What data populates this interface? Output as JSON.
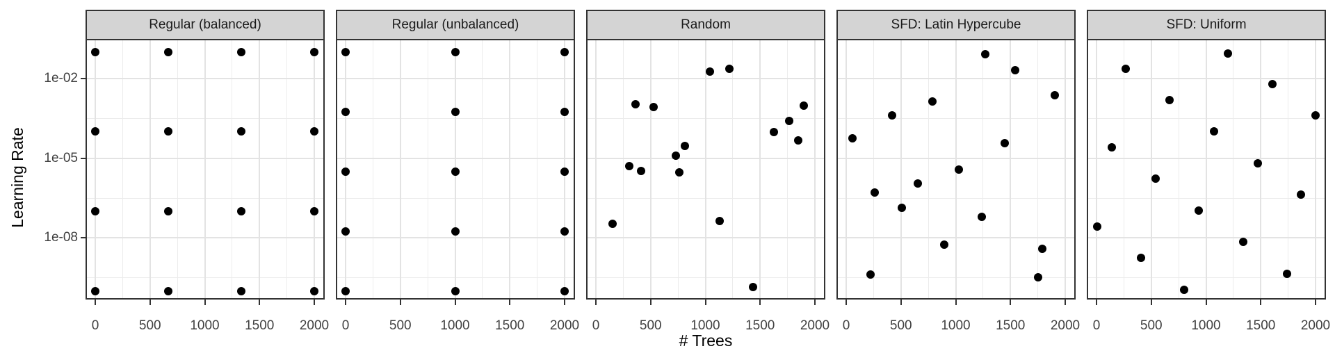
{
  "chart_data": {
    "type": "scatter",
    "title": "",
    "xlabel": "# Trees",
    "ylabel": "Learning Rate",
    "grid": "major+minor",
    "legend": "none",
    "x_axis": {
      "range_data": [
        0,
        2000
      ],
      "ticks": [
        0,
        500,
        1000,
        1500,
        2000
      ],
      "tick_labels": [
        "0",
        "500",
        "1000",
        "1500",
        "2000"
      ],
      "minor_ticks": [
        250,
        750,
        1250,
        1750
      ]
    },
    "y_axis": {
      "scale": "log10",
      "range_data": [
        1e-10,
        0.1
      ],
      "ticks_log10": [
        -2,
        -5,
        -8
      ],
      "tick_labels": [
        "1e-02",
        "1e-05",
        "1e-08"
      ],
      "minor_ticks_log10": [
        -3.5,
        -6.5,
        -9.5
      ]
    },
    "facets": [
      {
        "label": "Regular (balanced)",
        "points": [
          [
            0,
            0.1
          ],
          [
            667,
            0.1
          ],
          [
            1333,
            0.1
          ],
          [
            2000,
            0.1
          ],
          [
            0,
            0.0001
          ],
          [
            667,
            0.0001
          ],
          [
            1333,
            0.0001
          ],
          [
            2000,
            0.0001
          ],
          [
            0,
            1e-07
          ],
          [
            667,
            1e-07
          ],
          [
            1333,
            1e-07
          ],
          [
            2000,
            1e-07
          ],
          [
            0,
            1e-10
          ],
          [
            667,
            1e-10
          ],
          [
            1333,
            1e-10
          ],
          [
            2000,
            1e-10
          ]
        ]
      },
      {
        "label": "Regular (unbalanced)",
        "points": [
          [
            0,
            0.1
          ],
          [
            1000,
            0.1
          ],
          [
            2000,
            0.1
          ],
          [
            0,
            0.00056
          ],
          [
            1000,
            0.00056
          ],
          [
            2000,
            0.00056
          ],
          [
            0,
            3.2e-06
          ],
          [
            1000,
            3.2e-06
          ],
          [
            2000,
            3.2e-06
          ],
          [
            0,
            1.8e-08
          ],
          [
            1000,
            1.8e-08
          ],
          [
            2000,
            1.8e-08
          ],
          [
            0,
            1e-10
          ],
          [
            1000,
            1e-10
          ],
          [
            2000,
            1e-10
          ]
        ]
      },
      {
        "label": "Random",
        "points": [
          [
            1040,
            0.018
          ],
          [
            1220,
            0.023
          ],
          [
            364,
            0.0011
          ],
          [
            524,
            0.00086
          ],
          [
            1898,
            0.00095
          ],
          [
            1764,
            0.00026
          ],
          [
            1623,
            9.8e-05
          ],
          [
            1847,
            4.7e-05
          ],
          [
            811,
            2.9e-05
          ],
          [
            728,
            1.25e-05
          ],
          [
            307,
            5.2e-06
          ],
          [
            415,
            3.3e-06
          ],
          [
            760,
            3e-06
          ],
          [
            153,
            3.5e-08
          ],
          [
            1131,
            4.4e-08
          ],
          [
            1438,
            1.4e-10
          ]
        ]
      },
      {
        "label": "SFD: Latin Hypercube",
        "points": [
          [
            1272,
            0.082
          ],
          [
            1540,
            0.021
          ],
          [
            1904,
            0.0024
          ],
          [
            786,
            0.0014
          ],
          [
            422,
            0.00041
          ],
          [
            58,
            5.7e-05
          ],
          [
            1450,
            3.7e-05
          ],
          [
            1029,
            3.8e-06
          ],
          [
            652,
            1.1e-06
          ],
          [
            262,
            5.2e-07
          ],
          [
            511,
            1.4e-07
          ],
          [
            1240,
            6.3e-08
          ],
          [
            895,
            5.7e-09
          ],
          [
            1789,
            3.9e-09
          ],
          [
            224,
            4.2e-10
          ],
          [
            1751,
            3.3e-10
          ]
        ]
      },
      {
        "label": "SFD: Uniform",
        "points": [
          [
            1197,
            0.087
          ],
          [
            268,
            0.023
          ],
          [
            1605,
            0.0062
          ],
          [
            669,
            0.00155
          ],
          [
            2000,
            0.00041
          ],
          [
            1070,
            0.0001
          ],
          [
            140,
            2.6e-05
          ],
          [
            1471,
            6.5e-06
          ],
          [
            541,
            1.7e-06
          ],
          [
            1866,
            4.3e-07
          ],
          [
            936,
            1.1e-07
          ],
          [
            6,
            2.7e-08
          ],
          [
            1338,
            7.2e-09
          ],
          [
            408,
            1.8e-09
          ],
          [
            1739,
            4.5e-10
          ],
          [
            802,
            1.1e-10
          ]
        ]
      }
    ]
  },
  "style": {
    "strip_bg": "#d4d4d4",
    "panel_border": "#333333",
    "grid_major": "#e3e3e3",
    "grid_minor": "#ececec",
    "point_color": "#000000",
    "tick_color": "#333333",
    "tick_label_color": "#404040",
    "axis_title_color": "#000000"
  }
}
